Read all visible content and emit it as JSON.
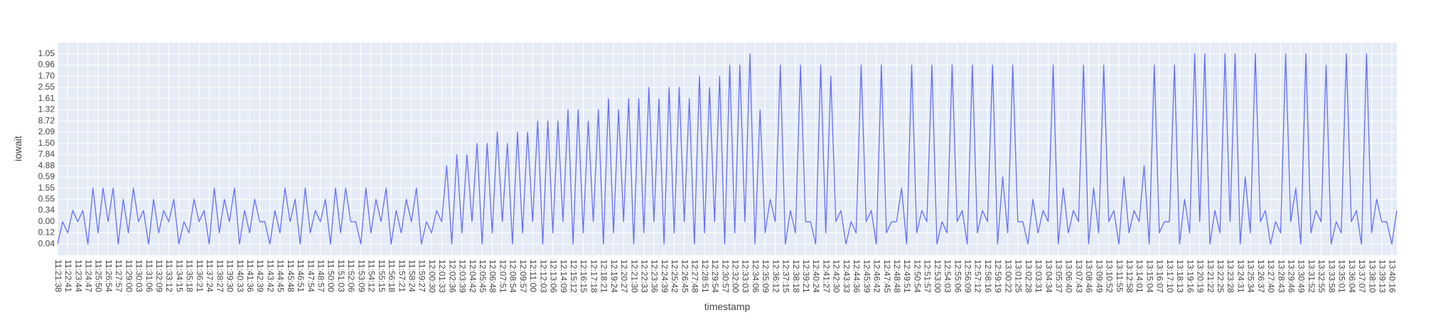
{
  "chart_data": {
    "type": "line",
    "x_label": "timestamp",
    "y_label": "iowait",
    "grid": true,
    "background": "#e5ecf6",
    "ycategories": [
      "0.04",
      "0.12",
      "0.00",
      "0.34",
      "0.55",
      "1.55",
      "0.59",
      "4.88",
      "7.84",
      "1.50",
      "2.09",
      "8.72",
      "1.32",
      "1.61",
      "2.55",
      "1.70",
      "0.96",
      "1.05"
    ],
    "x": [
      "11:21:38",
      null,
      "11:22:41",
      null,
      "11:23:44",
      null,
      "11:24:47",
      null,
      "11:25:50",
      null,
      "11:26:54",
      null,
      "11:27:57",
      null,
      "11:29:00",
      null,
      "11:30:03",
      null,
      "11:31:06",
      null,
      "11:32:09",
      null,
      "11:33:12",
      null,
      "11:34:15",
      null,
      "11:35:18",
      null,
      "11:36:21",
      null,
      "11:37:24",
      null,
      "11:38:27",
      null,
      "11:39:30",
      null,
      "11:40:33",
      null,
      "11:41:36",
      null,
      "11:42:39",
      null,
      "11:43:42",
      null,
      "11:44:45",
      null,
      "11:45:48",
      null,
      "11:46:51",
      null,
      "11:47:54",
      null,
      "11:48:57",
      null,
      "11:50:00",
      null,
      "11:51:03",
      null,
      "11:52:06",
      null,
      "11:53:09",
      null,
      "11:54:12",
      null,
      "11:55:15",
      null,
      "11:56:18",
      null,
      "11:57:21",
      null,
      "11:58:24",
      null,
      "11:59:27",
      null,
      "12:00:30",
      null,
      "12:01:33",
      null,
      "12:02:36",
      null,
      "12:03:39",
      null,
      "12:04:42",
      null,
      "12:05:45",
      null,
      "12:06:48",
      null,
      "12:07:51",
      null,
      "12:08:54",
      null,
      "12:09:57",
      null,
      "12:11:00",
      null,
      "12:12:03",
      null,
      "12:13:06",
      null,
      "12:14:09",
      null,
      "12:15:12",
      null,
      "12:16:15",
      null,
      "12:17:18",
      null,
      "12:18:21",
      null,
      "12:19:24",
      null,
      "12:20:27",
      null,
      "12:21:30",
      null,
      "12:22:33",
      null,
      "12:23:36",
      null,
      "12:24:39",
      null,
      "12:25:42",
      null,
      "12:26:45",
      null,
      "12:27:48",
      null,
      "12:28:51",
      null,
      "12:29:54",
      null,
      "12:30:57",
      null,
      "12:32:00",
      null,
      "12:33:03",
      null,
      "12:34:06",
      null,
      "12:35:09",
      null,
      "12:36:12",
      null,
      "12:37:15",
      null,
      "12:38:18",
      null,
      "12:39:21",
      null,
      "12:40:24",
      null,
      "12:41:27",
      null,
      "12:42:30",
      null,
      "12:43:33",
      null,
      "12:44:36",
      null,
      "12:45:39",
      null,
      "12:46:42",
      null,
      "12:47:45",
      null,
      "12:48:48",
      null,
      "12:49:51",
      null,
      "12:50:54",
      null,
      "12:51:57",
      null,
      "12:53:00",
      null,
      "12:54:03",
      null,
      "12:55:06",
      null,
      "12:56:09",
      null,
      "12:57:12",
      null,
      "12:58:16",
      null,
      "12:59:19",
      null,
      "13:00:22",
      null,
      "13:01:25",
      null,
      "13:02:28",
      null,
      "13:03:31",
      null,
      "13:04:34",
      null,
      "13:05:37",
      null,
      "13:06:40",
      null,
      "13:07:43",
      null,
      "13:08:46",
      null,
      "13:09:49",
      null,
      "13:10:52",
      null,
      "13:11:55",
      null,
      "13:12:58",
      null,
      "13:14:01",
      null,
      "13:15:04",
      null,
      "13:16:07",
      null,
      "13:17:10",
      null,
      "13:18:13",
      null,
      "13:19:16",
      null,
      "13:20:19",
      null,
      "13:21:22",
      null,
      "13:22:25",
      null,
      "13:23:28",
      null,
      "13:24:31",
      null,
      "13:25:34",
      null,
      "13:26:37",
      null,
      "13:27:40",
      null,
      "13:28:43",
      null,
      "13:29:46",
      null,
      "13:30:49",
      null,
      "13:31:52",
      null,
      "13:32:55",
      null,
      "13:33:58",
      null,
      "13:35:01",
      null,
      "13:36:04",
      null,
      "13:37:07",
      null,
      "13:38:10",
      null,
      "13:39:13",
      null,
      "13:40:16",
      null
    ],
    "series": [
      {
        "name": "iowait",
        "color": "#636efa",
        "values": [
          "0.04",
          "0.00",
          "0.12",
          "0.34",
          "0.00",
          "0.34",
          "0.04",
          "1.55",
          "0.12",
          "1.55",
          "0.00",
          "1.55",
          "0.04",
          "0.55",
          "0.12",
          "1.55",
          "0.00",
          "0.34",
          "0.04",
          "0.55",
          "0.12",
          "0.34",
          "0.00",
          "0.55",
          "0.04",
          "0.00",
          "0.12",
          "0.55",
          "0.00",
          "0.34",
          "0.04",
          "1.55",
          "0.12",
          "0.55",
          "0.00",
          "1.55",
          "0.04",
          "0.34",
          "0.12",
          "0.55",
          "0.00",
          "0.00",
          "0.04",
          "0.34",
          "0.12",
          "1.55",
          "0.00",
          "0.55",
          "0.04",
          "1.55",
          "0.12",
          "0.34",
          "0.00",
          "0.55",
          "0.04",
          "1.55",
          "0.12",
          "1.55",
          "0.00",
          "0.00",
          "0.04",
          "1.55",
          "0.12",
          "0.55",
          "0.00",
          "1.55",
          "0.04",
          "0.34",
          "0.12",
          "0.55",
          "0.00",
          "1.55",
          "0.04",
          "0.00",
          "0.12",
          "0.34",
          "0.00",
          "4.88",
          "0.04",
          "7.84",
          "0.12",
          "7.84",
          "0.00",
          "1.50",
          "0.04",
          "1.50",
          "0.12",
          "2.09",
          "0.00",
          "1.50",
          "0.04",
          "2.09",
          "0.12",
          "2.09",
          "0.00",
          "8.72",
          "0.04",
          "8.72",
          "0.12",
          "8.72",
          "0.00",
          "1.32",
          "0.04",
          "1.32",
          "0.12",
          "8.72",
          "0.00",
          "1.32",
          "0.04",
          "1.61",
          "0.12",
          "1.32",
          "0.00",
          "1.61",
          "0.04",
          "1.61",
          "0.12",
          "2.55",
          "0.00",
          "1.61",
          "0.04",
          "2.55",
          "0.12",
          "2.55",
          "0.00",
          "1.61",
          "0.04",
          "1.70",
          "0.12",
          "2.55",
          "0.00",
          "1.70",
          "0.04",
          "0.96",
          "0.12",
          "0.96",
          "0.00",
          "1.05",
          "0.04",
          "1.32",
          "0.12",
          "0.55",
          "0.00",
          "0.96",
          "0.04",
          "0.34",
          "0.12",
          "0.96",
          "0.00",
          "0.00",
          "0.04",
          "0.96",
          "0.12",
          "1.70",
          "0.00",
          "0.34",
          "0.04",
          "0.00",
          "0.12",
          "0.96",
          "0.00",
          "0.34",
          "0.04",
          "0.96",
          "0.12",
          "0.00",
          "0.00",
          "1.55",
          "0.04",
          "0.96",
          "0.12",
          "0.34",
          "0.00",
          "0.96",
          "0.04",
          "0.00",
          "0.12",
          "0.96",
          "0.00",
          "0.34",
          "0.04",
          "0.96",
          "0.12",
          "0.34",
          "0.00",
          "0.96",
          "0.04",
          "0.59",
          "0.12",
          "0.96",
          "0.00",
          "0.00",
          "0.04",
          "0.55",
          "0.12",
          "0.34",
          "0.00",
          "0.96",
          "0.04",
          "1.55",
          "0.12",
          "0.34",
          "0.00",
          "0.96",
          "0.04",
          "1.55",
          "0.12",
          "0.96",
          "0.00",
          "0.34",
          "0.04",
          "0.59",
          "0.12",
          "0.34",
          "0.00",
          "4.88",
          "0.04",
          "0.96",
          "0.12",
          "0.00",
          "0.00",
          "0.96",
          "0.04",
          "0.55",
          "0.12",
          "1.05",
          "0.00",
          "1.05",
          "0.04",
          "0.34",
          "0.12",
          "1.05",
          "0.00",
          "1.05",
          "0.04",
          "0.59",
          "0.12",
          "1.05",
          "0.00",
          "0.34",
          "0.04",
          "0.00",
          "0.12",
          "1.05",
          "0.00",
          "1.55",
          "0.04",
          "1.05",
          "0.12",
          "0.34",
          "0.00",
          "0.96",
          "0.04",
          "0.00",
          "0.12",
          "1.05",
          "0.00",
          "0.34",
          "0.04",
          "1.05",
          "0.12",
          "0.55",
          "0.00",
          "0.00",
          "0.04",
          "0.34"
        ]
      }
    ]
  }
}
